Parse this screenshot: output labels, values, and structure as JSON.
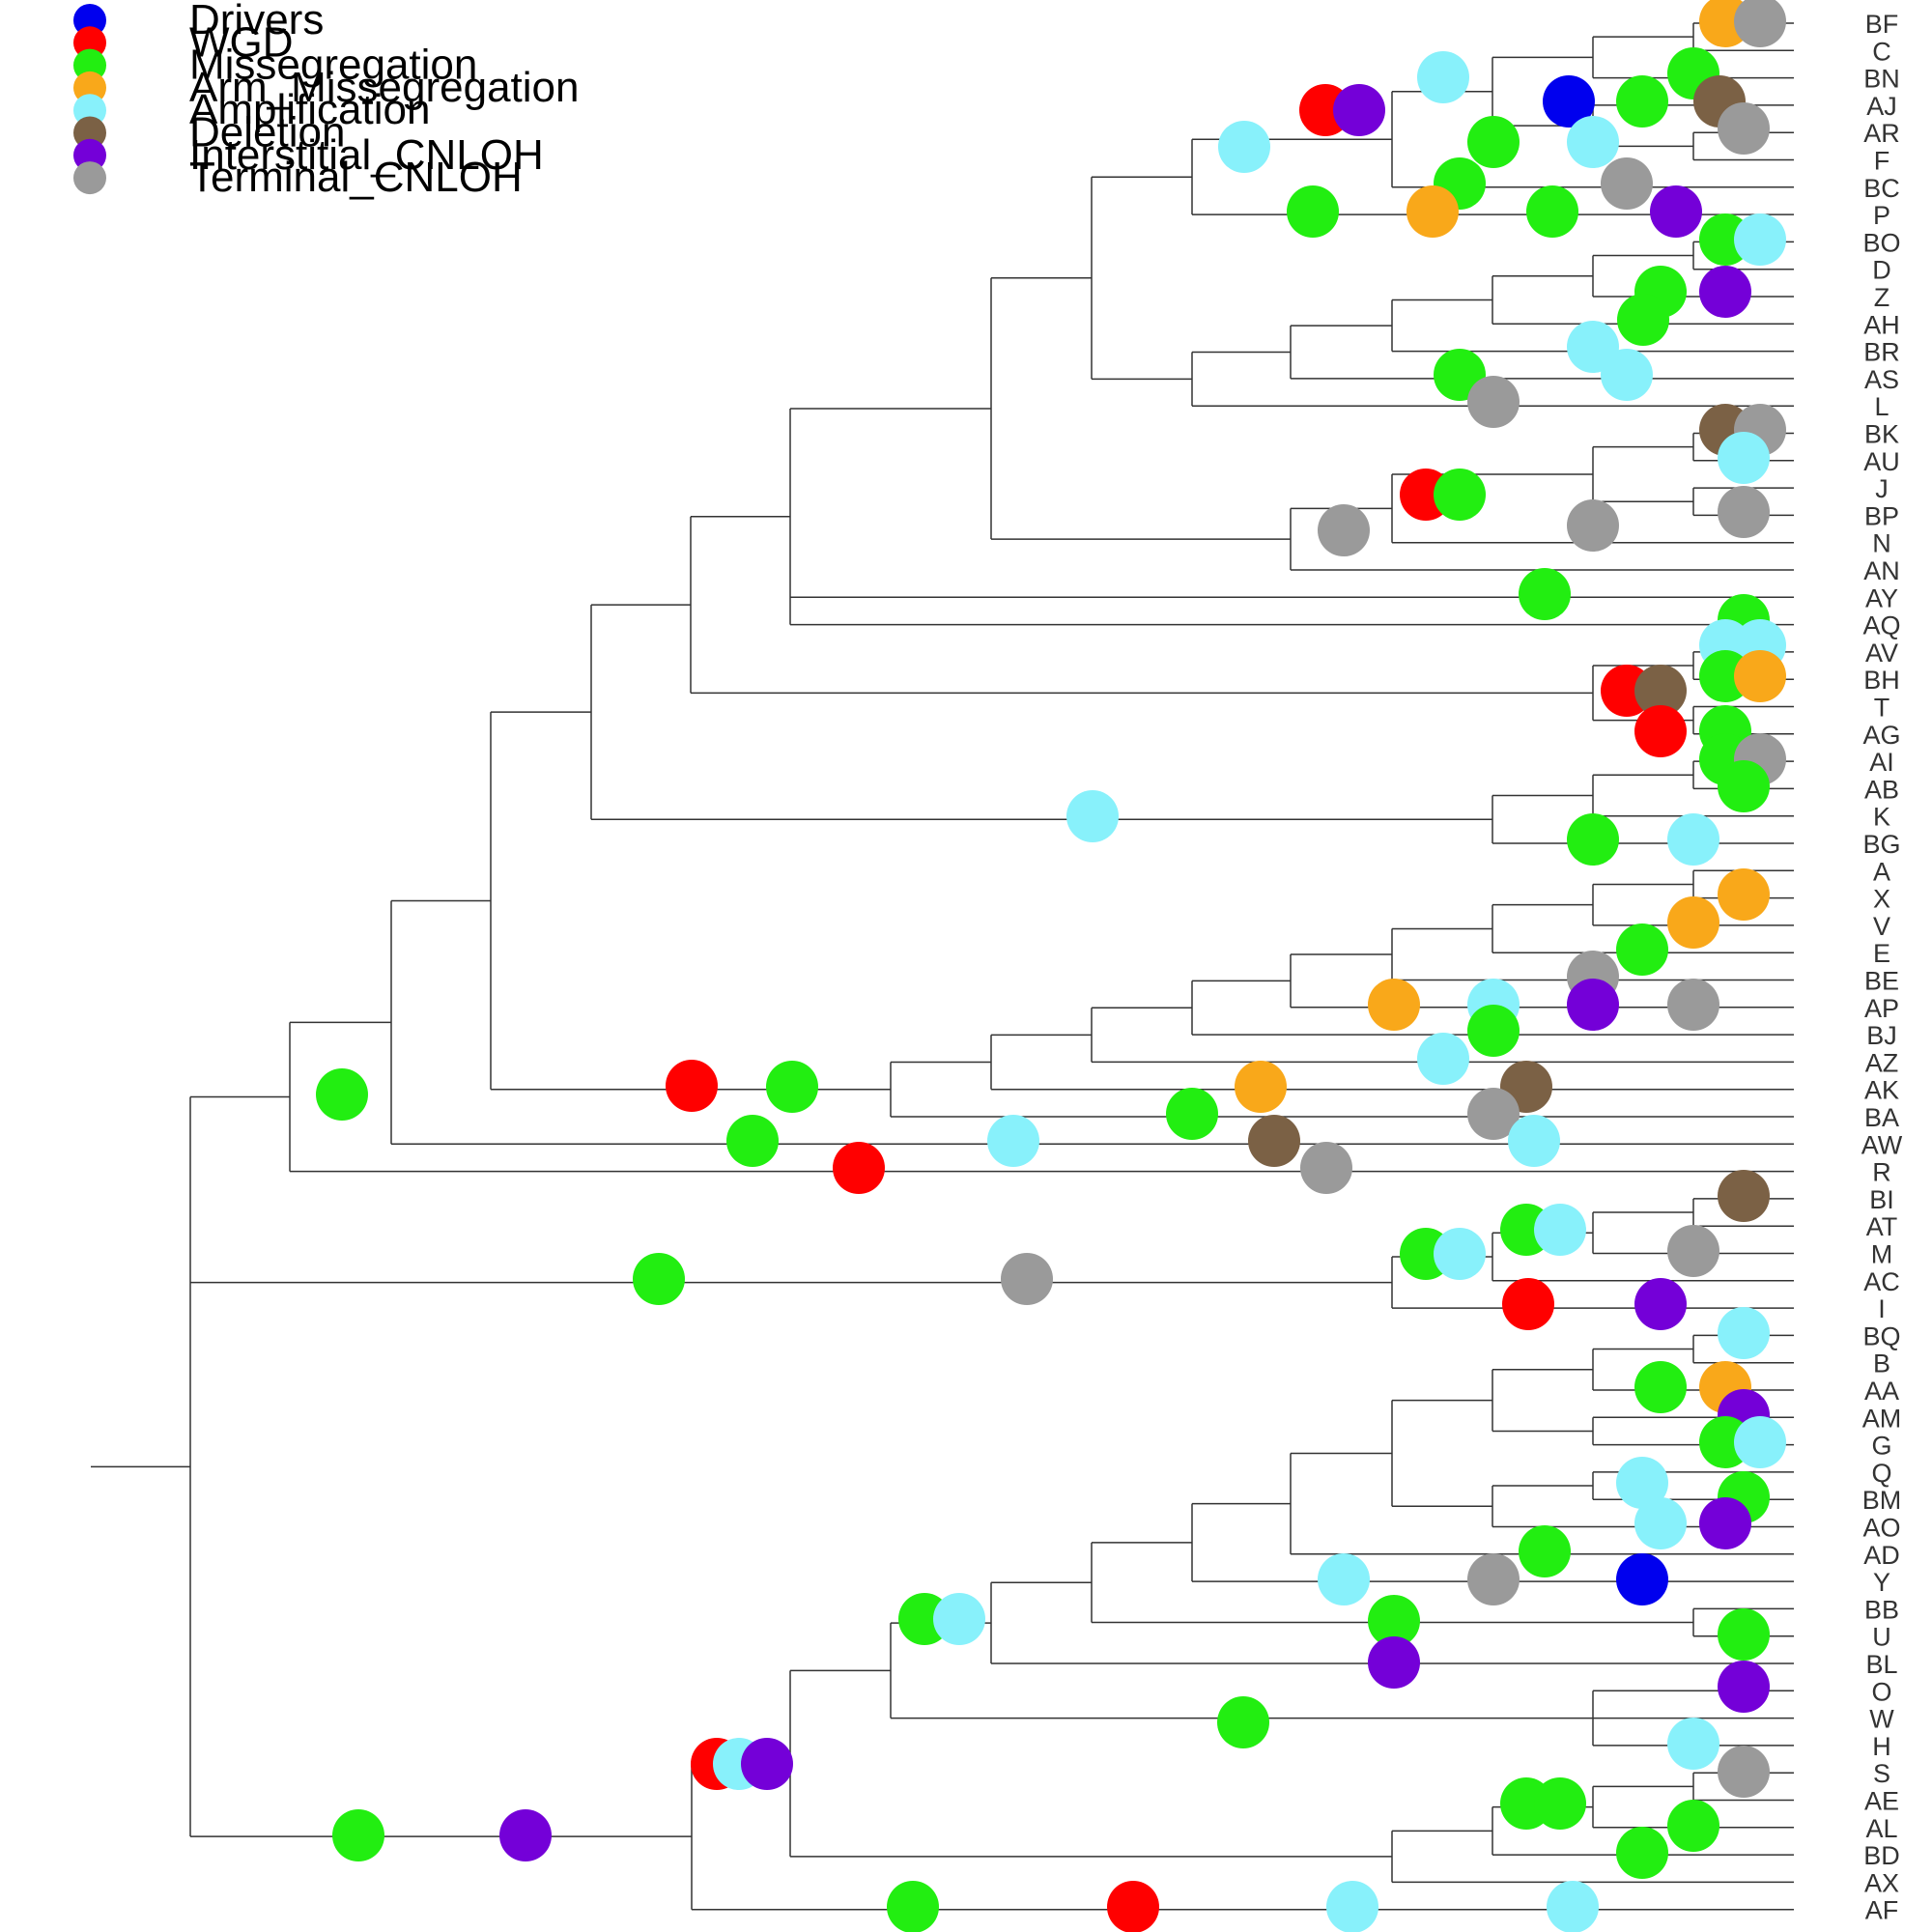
{
  "legend": {
    "items": [
      {
        "key": "drivers",
        "label": "Drivers",
        "color": "#0000ee"
      },
      {
        "key": "wgd",
        "label": "WGD",
        "color": "#ff0000"
      },
      {
        "key": "missegregation",
        "label": "Missegregation",
        "color": "#22ee11"
      },
      {
        "key": "arm_missegregation",
        "label": "Arm_Missegregation",
        "color": "#f9a81a"
      },
      {
        "key": "amplification",
        "label": "Amplification",
        "color": "#88f1fb"
      },
      {
        "key": "deletion",
        "label": "Deletion",
        "color": "#7b6145"
      },
      {
        "key": "interstitial_cnloh",
        "label": "Interstitial_CNLOH",
        "color": "#7400d8"
      },
      {
        "key": "terminal_cnloh",
        "label": "Terminal_CNLOH",
        "color": "#9a9a9a"
      }
    ]
  },
  "tips": [
    "BF",
    "C",
    "BN",
    "AJ",
    "AR",
    "F",
    "BC",
    "P",
    "BO",
    "D",
    "Z",
    "AH",
    "BR",
    "AS",
    "L",
    "BK",
    "AU",
    "J",
    "BP",
    "N",
    "AN",
    "AY",
    "AQ",
    "AV",
    "BH",
    "T",
    "AG",
    "AI",
    "AB",
    "K",
    "BG",
    "A",
    "X",
    "V",
    "E",
    "BE",
    "AP",
    "BJ",
    "AZ",
    "AK",
    "BA",
    "AW",
    "R",
    "BI",
    "AT",
    "M",
    "AC",
    "I",
    "BQ",
    "B",
    "AA",
    "AM",
    "G",
    "Q",
    "BM",
    "AO",
    "AD",
    "Y",
    "BB",
    "U",
    "BL",
    "O",
    "W",
    "H",
    "S",
    "AE",
    "AL",
    "BD",
    "AX",
    "AF"
  ]
}
